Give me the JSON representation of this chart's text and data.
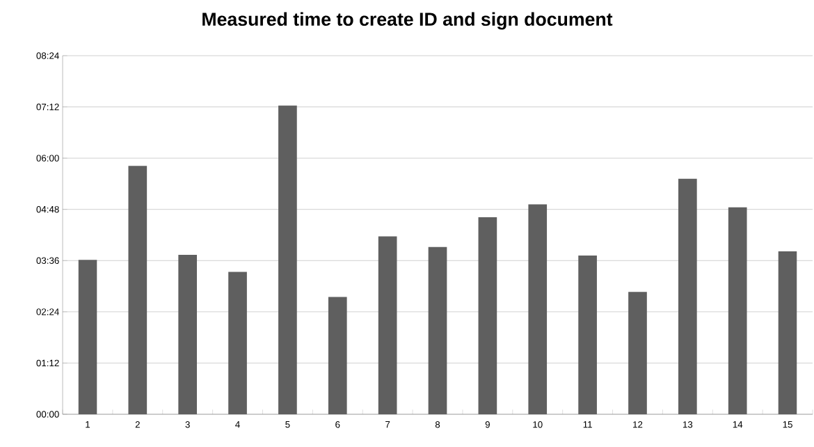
{
  "chart_data": {
    "type": "bar",
    "title": "Measured time to create ID and sign document",
    "categories": [
      "1",
      "2",
      "3",
      "4",
      "5",
      "6",
      "7",
      "8",
      "9",
      "10",
      "11",
      "12",
      "13",
      "14",
      "15"
    ],
    "values": [
      217,
      349,
      224,
      200,
      434,
      165,
      250,
      235,
      277,
      295,
      223,
      172,
      331,
      291,
      229
    ],
    "color": "#5f5f5f",
    "ylim": [
      0,
      504
    ],
    "yticks": [
      {
        "value": 0,
        "label": "00:00"
      },
      {
        "value": 72,
        "label": "01:12"
      },
      {
        "value": 144,
        "label": "02:24"
      },
      {
        "value": 216,
        "label": "03:36"
      },
      {
        "value": 288,
        "label": "04:48"
      },
      {
        "value": 360,
        "label": "06:00"
      },
      {
        "value": 432,
        "label": "07:12"
      },
      {
        "value": 504,
        "label": "08:24"
      }
    ],
    "grid": "y"
  }
}
